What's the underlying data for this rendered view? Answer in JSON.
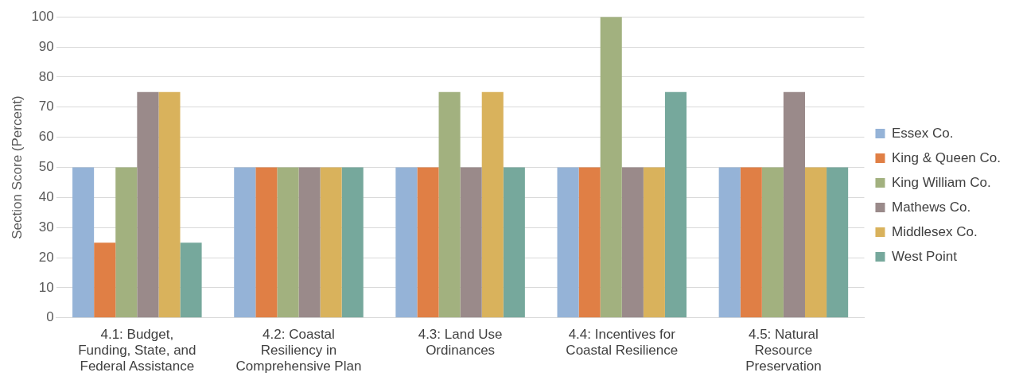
{
  "chart_data": {
    "type": "bar",
    "ylabel": "Section Score (Percent)",
    "categories": [
      "4.1: Budget, Funding, State, and Federal Assistance",
      "4.2: Coastal Resiliency in Comprehensive Plan",
      "4.3: Land Use Ordinances",
      "4.4: Incentives for Coastal Resilience",
      "4.5: Natural Resource Preservation"
    ],
    "series": [
      {
        "name": "Essex Co.",
        "color": "#95b3d7",
        "values": [
          50,
          50,
          50,
          50,
          50
        ]
      },
      {
        "name": "King & Queen Co.",
        "color": "#e07f45",
        "values": [
          25,
          50,
          50,
          50,
          50
        ]
      },
      {
        "name": "King William Co.",
        "color": "#a2b17f",
        "values": [
          50,
          50,
          75,
          100,
          50
        ]
      },
      {
        "name": "Mathews Co.",
        "color": "#9a8a8a",
        "values": [
          75,
          50,
          50,
          50,
          75
        ]
      },
      {
        "name": "Middlesex Co.",
        "color": "#d9b25c",
        "values": [
          75,
          50,
          75,
          50,
          50
        ]
      },
      {
        "name": "West Point",
        "color": "#76a89c",
        "values": [
          25,
          50,
          50,
          75,
          50
        ]
      }
    ],
    "ylim": [
      0,
      100
    ],
    "yticks": [
      0,
      10,
      20,
      30,
      40,
      50,
      60,
      70,
      80,
      90,
      100
    ],
    "grid": "y",
    "legend": "right"
  }
}
